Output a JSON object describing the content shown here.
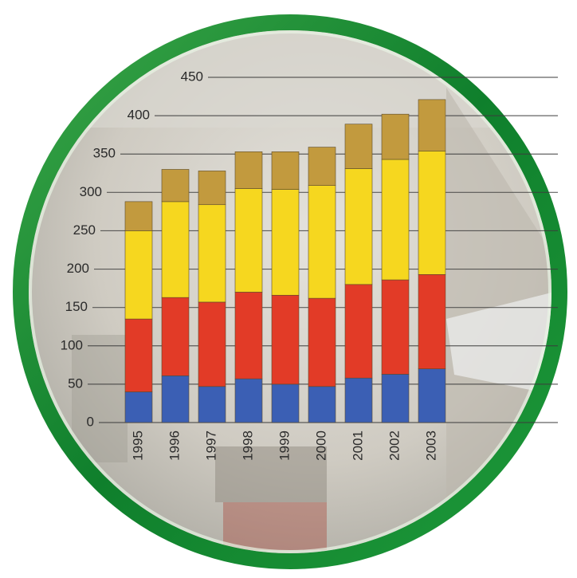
{
  "chart_data": {
    "type": "bar",
    "stacked": true,
    "categories": [
      "1995",
      "1996",
      "1997",
      "1998",
      "1999",
      "2000",
      "2001",
      "2002",
      "2003"
    ],
    "series": [
      {
        "color": "#3b5fb4",
        "values": [
          40,
          61,
          47,
          57,
          50,
          47,
          58,
          63,
          70
        ]
      },
      {
        "color": "#e23b27",
        "values": [
          95,
          102,
          110,
          113,
          116,
          115,
          122,
          123,
          123
        ]
      },
      {
        "color": "#f6d71f",
        "values": [
          115,
          125,
          127,
          135,
          138,
          147,
          151,
          157,
          161
        ]
      },
      {
        "color": "#c29a3e",
        "values": [
          38,
          42,
          44,
          48,
          49,
          50,
          58,
          59,
          67
        ]
      }
    ],
    "ylim": [
      0,
      450
    ],
    "yticks": [
      0,
      50,
      100,
      150,
      200,
      250,
      300,
      350,
      400,
      450
    ],
    "grid": true
  }
}
